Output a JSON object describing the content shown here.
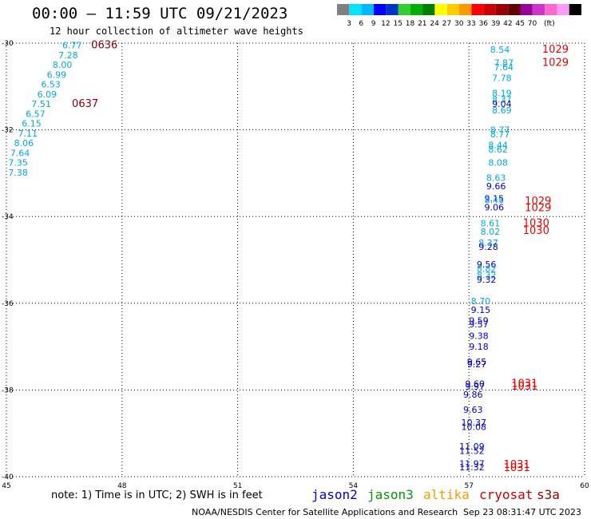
{
  "header": {
    "title": "00:00 – 11:59 UTC 09/21/2023",
    "subtitle": "12 hour collection of altimeter wave heights"
  },
  "colorbar": {
    "colors": [
      "#808080",
      "#00e5ff",
      "#00b8ff",
      "#0000ff",
      "#0033cc",
      "#33cc33",
      "#00b000",
      "#008000",
      "#ffff00",
      "#ffcc00",
      "#ff9900",
      "#ff0000",
      "#cc0000",
      "#990000",
      "#660000",
      "#990099",
      "#cc33cc",
      "#ff66cc",
      "#ff99ff",
      "#000000"
    ],
    "labels": [
      "3",
      "6",
      "9",
      "12",
      "15",
      "18",
      "21",
      "24",
      "27",
      "30",
      "33",
      "36",
      "39",
      "42",
      "45",
      "70",
      "(ft)"
    ]
  },
  "footer": {
    "note": "note:  1) Time is in UTC;  2) SWH is in feet",
    "credit": "NOAA/NESDIS Center for Satellite Applications and Research",
    "stamp": "Sep 23 08:31:47 UTC 2023"
  },
  "legend": [
    {
      "label": "jason2",
      "color": "#0000cc"
    },
    {
      "label": "jason3",
      "color": "#009900"
    },
    {
      "label": "altika",
      "color": "#ff9900"
    },
    {
      "label": "cryosat",
      "color": "#cc0000"
    },
    {
      "label": "s3a",
      "color": "#990000"
    }
  ],
  "chart_data": {
    "type": "scatter",
    "title": "00:00 – 11:59 UTC 09/21/2023",
    "subtitle": "12 hour collection of altimeter wave heights",
    "xlim": [
      45,
      60
    ],
    "ylim": [
      -40,
      -30
    ],
    "xticks": [
      "45",
      "48",
      "51",
      "54",
      "57",
      "60"
    ],
    "yticks": [
      "-30",
      "-32",
      "-34",
      "-36",
      "-38",
      "-40"
    ],
    "grid": "dotted",
    "labels": [
      {
        "x": 46.45,
        "y": -30.05,
        "text": "6.77",
        "color": "#00aadd"
      },
      {
        "x": 46.35,
        "y": -30.28,
        "text": "7.28",
        "color": "#00aadd"
      },
      {
        "x": 46.2,
        "y": -30.5,
        "text": "8.00",
        "color": "#00aadd"
      },
      {
        "x": 46.05,
        "y": -30.73,
        "text": "6.99",
        "color": "#00aadd"
      },
      {
        "x": 45.9,
        "y": -30.95,
        "text": "6.53",
        "color": "#00aadd"
      },
      {
        "x": 45.8,
        "y": -31.18,
        "text": "6.09",
        "color": "#00aadd"
      },
      {
        "x": 45.65,
        "y": -31.4,
        "text": "7.51",
        "color": "#00aadd"
      },
      {
        "x": 45.5,
        "y": -31.63,
        "text": "6.57",
        "color": "#00aadd"
      },
      {
        "x": 45.4,
        "y": -31.85,
        "text": "6.15",
        "color": "#00aadd"
      },
      {
        "x": 45.3,
        "y": -32.08,
        "text": "7.11",
        "color": "#00aadd"
      },
      {
        "x": 45.2,
        "y": -32.3,
        "text": "8.06",
        "color": "#00aadd"
      },
      {
        "x": 45.1,
        "y": -32.53,
        "text": "7.64",
        "color": "#00aadd"
      },
      {
        "x": 45.05,
        "y": -32.75,
        "text": "7.35",
        "color": "#00aadd"
      },
      {
        "x": 45.05,
        "y": -32.98,
        "text": "7.38",
        "color": "#00aadd"
      },
      {
        "x": 47.2,
        "y": -30.05,
        "text": "0636",
        "color": "#880000"
      },
      {
        "x": 46.7,
        "y": -31.4,
        "text": "0637",
        "color": "#880000"
      },
      {
        "x": 57.55,
        "y": -30.15,
        "text": "8.54",
        "color": "#00aadd"
      },
      {
        "x": 57.65,
        "y": -30.45,
        "text": "7.87",
        "color": "#00aadd"
      },
      {
        "x": 57.65,
        "y": -30.55,
        "text": "7.64",
        "color": "#00aadd"
      },
      {
        "x": 57.6,
        "y": -30.8,
        "text": "7.78",
        "color": "#00aadd"
      },
      {
        "x": 57.6,
        "y": -31.15,
        "text": "8.19",
        "color": "#00aadd"
      },
      {
        "x": 57.6,
        "y": -31.3,
        "text": "8.37",
        "color": "#00aadd"
      },
      {
        "x": 57.6,
        "y": -31.4,
        "text": "9.04",
        "color": "#0000cc"
      },
      {
        "x": 57.6,
        "y": -31.55,
        "text": "8.69",
        "color": "#00aadd"
      },
      {
        "x": 57.55,
        "y": -32.0,
        "text": "8.77",
        "color": "#00aadd"
      },
      {
        "x": 57.55,
        "y": -32.1,
        "text": "8.77",
        "color": "#00aadd"
      },
      {
        "x": 57.5,
        "y": -32.35,
        "text": "8.44",
        "color": "#00aadd"
      },
      {
        "x": 57.5,
        "y": -32.45,
        "text": "8.62",
        "color": "#00aadd"
      },
      {
        "x": 57.5,
        "y": -32.75,
        "text": "8.08",
        "color": "#00aadd"
      },
      {
        "x": 57.45,
        "y": -33.1,
        "text": "8.63",
        "color": "#00aadd"
      },
      {
        "x": 57.45,
        "y": -33.3,
        "text": "9.66",
        "color": "#0000cc"
      },
      {
        "x": 57.4,
        "y": -33.58,
        "text": "9.15",
        "color": "#0000cc"
      },
      {
        "x": 57.4,
        "y": -33.62,
        "text": "8.45",
        "color": "#00aadd"
      },
      {
        "x": 57.4,
        "y": -33.78,
        "text": "9.06",
        "color": "#0000cc"
      },
      {
        "x": 58.9,
        "y": -30.15,
        "text": "1029",
        "color": "#ee0000"
      },
      {
        "x": 58.9,
        "y": -30.45,
        "text": "1029",
        "color": "#ee0000"
      },
      {
        "x": 58.45,
        "y": -33.65,
        "text": "1029",
        "color": "#ee0000"
      },
      {
        "x": 58.45,
        "y": -33.8,
        "text": "1029",
        "color": "#ee0000"
      },
      {
        "x": 57.3,
        "y": -34.15,
        "text": "8.61",
        "color": "#00aadd"
      },
      {
        "x": 57.3,
        "y": -34.35,
        "text": "8.02",
        "color": "#00aadd"
      },
      {
        "x": 57.25,
        "y": -34.6,
        "text": "8.37",
        "color": "#00aadd"
      },
      {
        "x": 57.25,
        "y": -34.7,
        "text": "9.28",
        "color": "#0000cc"
      },
      {
        "x": 58.4,
        "y": -34.15,
        "text": "1030",
        "color": "#ee0000"
      },
      {
        "x": 58.4,
        "y": -34.33,
        "text": "1030",
        "color": "#ee0000"
      },
      {
        "x": 57.2,
        "y": -35.1,
        "text": "9.56",
        "color": "#0000cc"
      },
      {
        "x": 57.2,
        "y": -35.2,
        "text": "8.82",
        "color": "#00aadd"
      },
      {
        "x": 57.2,
        "y": -35.35,
        "text": "8.32",
        "color": "#00aadd"
      },
      {
        "x": 57.2,
        "y": -35.45,
        "text": "9.32",
        "color": "#0000cc"
      },
      {
        "x": 57.05,
        "y": -35.95,
        "text": "8.70",
        "color": "#00aadd"
      },
      {
        "x": 57.05,
        "y": -36.15,
        "text": "9.15",
        "color": "#0000cc"
      },
      {
        "x": 57.0,
        "y": -36.4,
        "text": "9.59",
        "color": "#0000cc"
      },
      {
        "x": 57.0,
        "y": -36.48,
        "text": "9.57",
        "color": "#0000cc"
      },
      {
        "x": 57.0,
        "y": -36.75,
        "text": "9.38",
        "color": "#0000cc"
      },
      {
        "x": 57.0,
        "y": -37.0,
        "text": "9.18",
        "color": "#0000cc"
      },
      {
        "x": 56.95,
        "y": -37.35,
        "text": "9.65",
        "color": "#0000cc"
      },
      {
        "x": 56.95,
        "y": -37.4,
        "text": "9.27",
        "color": "#0000cc"
      },
      {
        "x": 56.9,
        "y": -37.85,
        "text": "9.60",
        "color": "#0000cc"
      },
      {
        "x": 56.9,
        "y": -37.92,
        "text": "9.97",
        "color": "#0000cc"
      },
      {
        "x": 56.85,
        "y": -38.1,
        "text": "9.86",
        "color": "#0000cc"
      },
      {
        "x": 56.85,
        "y": -38.45,
        "text": "9.63",
        "color": "#0000cc"
      },
      {
        "x": 56.8,
        "y": -38.75,
        "text": "10.37",
        "color": "#0000cc"
      },
      {
        "x": 56.8,
        "y": -38.85,
        "text": "10.08",
        "color": "#0000cc"
      },
      {
        "x": 56.75,
        "y": -39.3,
        "text": "11.09",
        "color": "#0000cc"
      },
      {
        "x": 56.75,
        "y": -39.4,
        "text": "11.52",
        "color": "#0000cc"
      },
      {
        "x": 56.75,
        "y": -39.7,
        "text": "11.97",
        "color": "#0000cc"
      },
      {
        "x": 56.75,
        "y": -39.78,
        "text": "11.32",
        "color": "#0000cc"
      },
      {
        "x": 58.1,
        "y": -37.85,
        "text": "1031",
        "color": "#ee0000"
      },
      {
        "x": 58.1,
        "y": -37.92,
        "text": "1031",
        "color": "#ee0000"
      },
      {
        "x": 57.9,
        "y": -39.72,
        "text": "1031",
        "color": "#ee0000"
      },
      {
        "x": 57.9,
        "y": -39.8,
        "text": "1031",
        "color": "#ee0000"
      }
    ]
  }
}
